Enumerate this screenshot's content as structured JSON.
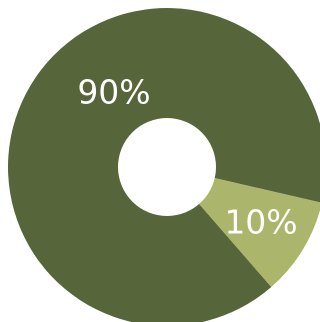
{
  "chart_data": {
    "type": "pie",
    "donut": true,
    "slices": [
      {
        "label": "90%",
        "value": 90,
        "color": "#56653a"
      },
      {
        "label": "10%",
        "value": 10,
        "color": "#abb56c"
      }
    ],
    "background_color": "#ffffff"
  }
}
